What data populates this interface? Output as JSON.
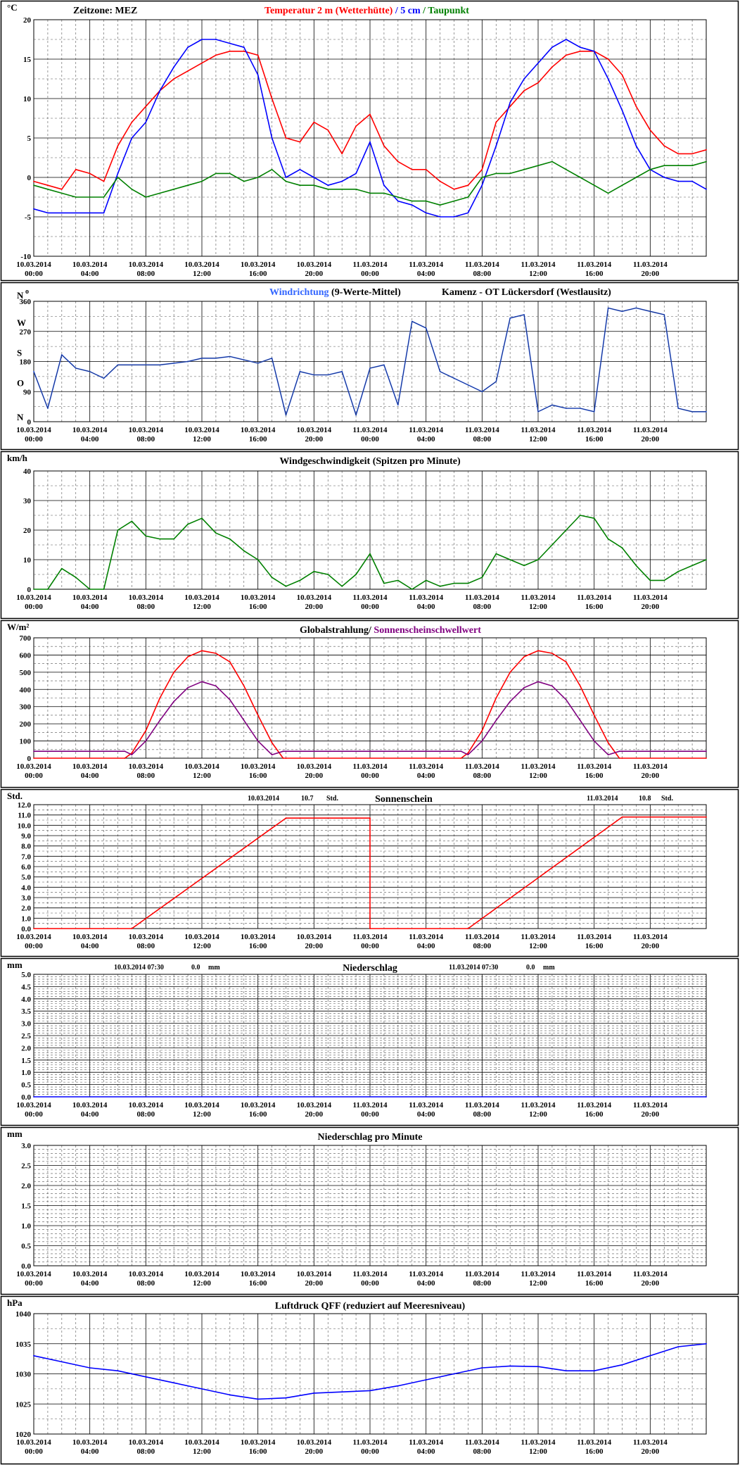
{
  "x_axis": {
    "hours": [
      0,
      4,
      8,
      12,
      16,
      20,
      24,
      28,
      32,
      36,
      40,
      44
    ],
    "labels": [
      [
        "10.03.2014",
        "00:00"
      ],
      [
        "10.03.2014",
        "04:00"
      ],
      [
        "10.03.2014",
        "08:00"
      ],
      [
        "10.03.2014",
        "12:00"
      ],
      [
        "10.03.2014",
        "16:00"
      ],
      [
        "10.03.2014",
        "20:00"
      ],
      [
        "11.03.2014",
        "00:00"
      ],
      [
        "11.03.2014",
        "04:00"
      ],
      [
        "11.03.2014",
        "08:00"
      ],
      [
        "11.03.2014",
        "12:00"
      ],
      [
        "11.03.2014",
        "16:00"
      ],
      [
        "11.03.2014",
        "20:00"
      ]
    ],
    "range_hours": [
      0,
      48
    ]
  },
  "colors": {
    "temperature": "#ff0000",
    "soil_5cm": "#0000ff",
    "dewpoint": "#008000",
    "wind_dir_avg": "#3366ff",
    "wind_dir_raw": "#000000",
    "wind_speed": "#008000",
    "radiation": "#ff0000",
    "sunshine_threshold": "#800080",
    "sunshine": "#ff0000",
    "precip": "#0000ff",
    "pressure": "#0000ff"
  },
  "chart_data": [
    {
      "id": "temperature",
      "type": "line",
      "unit_label": "°C",
      "corner_label": "Zeitzone: MEZ",
      "title_parts": [
        "Temperatur 2 m (Wetterhütte)",
        "/",
        "5 cm",
        "/",
        "Taupunkt"
      ],
      "ylim": [
        -10,
        20
      ],
      "yticks": [
        -10,
        -5,
        0,
        5,
        10,
        15,
        20
      ],
      "series": [
        {
          "name": "Temperatur 2 m (Wetterhütte)",
          "x": [
            0,
            1,
            2,
            3,
            4,
            5,
            6,
            7,
            8,
            9,
            10,
            11,
            12,
            13,
            14,
            15,
            16,
            17,
            18,
            19,
            20,
            21,
            22,
            23,
            24,
            25,
            26,
            27,
            28,
            29,
            30,
            31,
            32,
            33,
            34,
            35,
            36,
            37,
            38,
            39,
            40,
            41,
            42,
            43,
            44,
            45,
            46,
            47,
            48
          ],
          "values": [
            -0.5,
            -1,
            -1.5,
            1,
            0.5,
            -0.5,
            4,
            7,
            9,
            11,
            12.5,
            13.5,
            14.5,
            15.5,
            16,
            16,
            15.5,
            10,
            5,
            4.5,
            7,
            6,
            3,
            6.5,
            8,
            4,
            2,
            1,
            1,
            -0.5,
            -1.5,
            -1,
            1,
            7,
            9,
            11,
            12,
            14,
            15.5,
            16,
            16,
            15,
            13,
            9,
            6,
            4,
            3,
            3,
            3.5
          ]
        },
        {
          "name": "5 cm",
          "x": [
            0,
            1,
            2,
            3,
            4,
            5,
            6,
            7,
            8,
            9,
            10,
            11,
            12,
            13,
            14,
            15,
            16,
            17,
            18,
            19,
            20,
            21,
            22,
            23,
            24,
            25,
            26,
            27,
            28,
            29,
            30,
            31,
            32,
            33,
            34,
            35,
            36,
            37,
            38,
            39,
            40,
            41,
            42,
            43,
            44,
            45,
            46,
            47,
            48
          ],
          "values": [
            -4,
            -4.5,
            -4.5,
            -4.5,
            -4.5,
            -4.5,
            0.5,
            5,
            7,
            11,
            14,
            16.5,
            17.5,
            17.5,
            17,
            16.5,
            13,
            5,
            0,
            1,
            0,
            -1,
            -0.5,
            0.5,
            4.5,
            -1,
            -3,
            -3.5,
            -4.5,
            -5,
            -5,
            -4.5,
            -1,
            4,
            9.5,
            12.5,
            14.5,
            16.5,
            17.5,
            16.5,
            16,
            12.5,
            8.5,
            4,
            1,
            0,
            -0.5,
            -0.5,
            -1.5
          ]
        },
        {
          "name": "Taupunkt",
          "x": [
            0,
            1,
            2,
            3,
            4,
            5,
            6,
            7,
            8,
            9,
            10,
            11,
            12,
            13,
            14,
            15,
            16,
            17,
            18,
            19,
            20,
            21,
            22,
            23,
            24,
            25,
            26,
            27,
            28,
            29,
            30,
            31,
            32,
            33,
            34,
            35,
            36,
            37,
            38,
            39,
            40,
            41,
            42,
            43,
            44,
            45,
            46,
            47,
            48
          ],
          "values": [
            -1,
            -1.5,
            -2,
            -2.5,
            -2.5,
            -2.5,
            0,
            -1.5,
            -2.5,
            -2,
            -1.5,
            -1,
            -0.5,
            0.5,
            0.5,
            -0.5,
            0,
            1,
            -0.5,
            -1,
            -1,
            -1.5,
            -1.5,
            -1.5,
            -2,
            -2,
            -2.5,
            -3,
            -3,
            -3.5,
            -3,
            -2.5,
            0,
            0.5,
            0.5,
            1,
            1.5,
            2,
            1,
            0,
            -1,
            -2,
            -1,
            0,
            1,
            1.5,
            1.5,
            1.5,
            2
          ]
        }
      ]
    },
    {
      "id": "wind-direction",
      "type": "line",
      "corner_label": "N",
      "corner_mark": "o",
      "title_parts": [
        "Windrichtung",
        "(9-Werte-Mittel)"
      ],
      "station": "Kamenz - OT Lückersdorf (Westlausitz)",
      "ylim": [
        0,
        360
      ],
      "yticks": [
        0,
        90,
        180,
        270,
        360
      ],
      "compass": [
        [
          "N",
          360
        ],
        [
          "W",
          270
        ],
        [
          "S",
          180
        ],
        [
          "O",
          90
        ],
        [
          "N",
          0
        ]
      ],
      "series": [
        {
          "name": "Windrichtung",
          "x": [
            0,
            1,
            2,
            3,
            4,
            5,
            6,
            7,
            8,
            9,
            10,
            11,
            12,
            13,
            14,
            15,
            16,
            17,
            18,
            19,
            20,
            21,
            22,
            23,
            24,
            25,
            26,
            27,
            28,
            29,
            30,
            31,
            32,
            33,
            34,
            35,
            36,
            37,
            38,
            39,
            40,
            41,
            42,
            43,
            44,
            45,
            46,
            47,
            48
          ],
          "values": [
            150,
            40,
            200,
            160,
            150,
            130,
            170,
            170,
            170,
            170,
            175,
            180,
            190,
            190,
            195,
            185,
            175,
            190,
            20,
            150,
            140,
            140,
            150,
            20,
            160,
            170,
            50,
            300,
            280,
            150,
            130,
            110,
            90,
            120,
            310,
            320,
            30,
            50,
            40,
            40,
            30,
            340,
            330,
            340,
            330,
            320,
            40,
            30,
            30
          ]
        }
      ]
    },
    {
      "id": "wind-speed",
      "type": "line",
      "unit_label": "km/h",
      "title_parts": [
        "Windgeschwindigkeit (Spitzen pro Minute)"
      ],
      "ylim": [
        0,
        40
      ],
      "yticks": [
        0,
        10,
        20,
        30,
        40
      ],
      "series": [
        {
          "name": "Windgeschwindigkeit",
          "x": [
            0,
            1,
            2,
            3,
            4,
            5,
            6,
            7,
            8,
            9,
            10,
            11,
            12,
            13,
            14,
            15,
            16,
            17,
            18,
            19,
            20,
            21,
            22,
            23,
            24,
            25,
            26,
            27,
            28,
            29,
            30,
            31,
            32,
            33,
            34,
            35,
            36,
            37,
            38,
            39,
            40,
            41,
            42,
            43,
            44,
            45,
            46,
            47,
            48
          ],
          "values": [
            0,
            0,
            7,
            4,
            0,
            0,
            20,
            23,
            18,
            17,
            17,
            22,
            24,
            19,
            17,
            13,
            10,
            4,
            1,
            3,
            6,
            5,
            1,
            5,
            12,
            2,
            3,
            0,
            3,
            1,
            2,
            2,
            4,
            12,
            10,
            8,
            10,
            15,
            20,
            25,
            24,
            17,
            14,
            8,
            3,
            3,
            6,
            8,
            10
          ]
        }
      ]
    },
    {
      "id": "radiation",
      "type": "line",
      "unit_label": "W/m²",
      "title_parts": [
        "Globalstrahlung/",
        "Sonnenscheinschwellwert"
      ],
      "ylim": [
        0,
        700
      ],
      "yticks": [
        0,
        100,
        200,
        300,
        400,
        500,
        600,
        700
      ],
      "series": [
        {
          "name": "Globalstrahlung",
          "x": [
            0,
            6.5,
            7,
            8,
            9,
            10,
            11,
            12,
            13,
            14,
            15,
            16,
            17,
            17.8,
            18,
            30.5,
            31,
            32,
            33,
            34,
            35,
            36,
            37,
            38,
            39,
            40,
            41,
            41.8,
            42,
            48
          ],
          "values": [
            0,
            0,
            30,
            160,
            350,
            500,
            590,
            625,
            610,
            560,
            420,
            250,
            90,
            0,
            0,
            0,
            30,
            160,
            350,
            500,
            590,
            625,
            610,
            560,
            420,
            250,
            90,
            0,
            0,
            0
          ]
        },
        {
          "name": "Sonnenscheinschwellwert",
          "x": [
            0,
            6.5,
            7,
            8,
            9,
            10,
            11,
            12,
            13,
            14,
            15,
            16,
            17,
            17.8,
            18,
            30.5,
            31,
            32,
            33,
            34,
            35,
            36,
            37,
            38,
            39,
            40,
            41,
            41.8,
            42,
            48
          ],
          "values": [
            40,
            40,
            20,
            100,
            220,
            330,
            410,
            445,
            420,
            340,
            220,
            100,
            20,
            40,
            40,
            40,
            20,
            100,
            220,
            330,
            410,
            445,
            420,
            340,
            220,
            100,
            20,
            40,
            40,
            40
          ]
        }
      ]
    },
    {
      "id": "sunshine",
      "type": "line",
      "unit_label": "Std.",
      "title_parts": [
        "Sonnenschein"
      ],
      "totals": [
        {
          "date": "10.03.2014",
          "value": "10.7",
          "unit": "Std."
        },
        {
          "date": "11.03.2014",
          "value": "10.8",
          "unit": "Std."
        }
      ],
      "ylim": [
        0,
        12
      ],
      "yticks": [
        "0.0",
        "1.0",
        "2.0",
        "3.0",
        "4.0",
        "5.0",
        "6.0",
        "7.0",
        "8.0",
        "9.0",
        "10.0",
        "11.0",
        "12.0"
      ],
      "series": [
        {
          "name": "Sonnenschein",
          "x": [
            0,
            7,
            18,
            24,
            24,
            31,
            42,
            48
          ],
          "values": [
            0,
            0,
            10.7,
            10.7,
            0,
            0,
            10.8,
            10.8
          ]
        }
      ]
    },
    {
      "id": "precipitation",
      "type": "line",
      "unit_label": "mm",
      "title_parts": [
        "Niederschlag"
      ],
      "totals": [
        {
          "date": "10.03.2014 07:30",
          "value": "0.0",
          "unit": "mm"
        },
        {
          "date": "11.03.2014 07:30",
          "value": "0.0",
          "unit": "mm"
        }
      ],
      "ylim": [
        0,
        5
      ],
      "yticks": [
        "0.0",
        "0.5",
        "1.0",
        "1.5",
        "2.0",
        "2.5",
        "3.0",
        "3.5",
        "4.0",
        "4.5",
        "5.0"
      ],
      "series": [
        {
          "name": "Niederschlag",
          "x": [
            0,
            48
          ],
          "values": [
            0,
            0
          ]
        }
      ]
    },
    {
      "id": "precipitation-minute",
      "type": "line",
      "unit_label": "mm",
      "title_parts": [
        "Niederschlag pro Minute"
      ],
      "ylim": [
        0,
        3
      ],
      "yticks": [
        "0.0",
        "0.5",
        "1.0",
        "1.5",
        "2.0",
        "2.5",
        "3.0"
      ],
      "series": []
    },
    {
      "id": "pressure",
      "type": "line",
      "unit_label": "hPa",
      "title_parts": [
        "Luftdruck QFF (reduziert auf Meeresniveau)"
      ],
      "ylim": [
        1020,
        1040
      ],
      "yticks": [
        1020,
        1025,
        1030,
        1035,
        1040
      ],
      "series": [
        {
          "name": "Luftdruck QFF",
          "x": [
            0,
            2,
            4,
            6,
            8,
            10,
            12,
            14,
            16,
            18,
            20,
            22,
            24,
            26,
            28,
            30,
            32,
            34,
            36,
            38,
            40,
            42,
            44,
            46,
            48
          ],
          "values": [
            1033,
            1032,
            1031,
            1030.5,
            1029.5,
            1028.5,
            1027.5,
            1026.5,
            1025.8,
            1026,
            1026.8,
            1027,
            1027.2,
            1028,
            1029,
            1030,
            1031,
            1031.3,
            1031.2,
            1030.5,
            1030.5,
            1031.5,
            1033,
            1034.5,
            1035
          ]
        }
      ]
    }
  ]
}
